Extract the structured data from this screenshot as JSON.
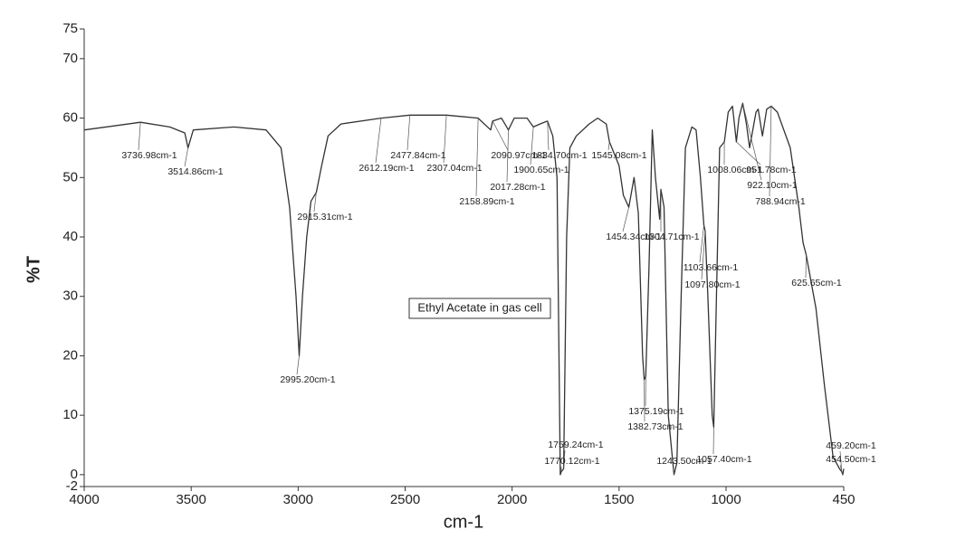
{
  "chart_data": {
    "type": "line",
    "x_label": "cm-1",
    "y_label": "%T",
    "annotation_box": "Ethyl Acetate in gas cell",
    "color": "#333333",
    "xlim": [
      4000,
      450
    ],
    "ylim": [
      -2,
      75
    ],
    "xticks": [
      4000,
      3500,
      3000,
      2500,
      2000,
      1500,
      1000,
      450
    ],
    "yticks": [
      -2,
      0,
      10,
      20,
      30,
      40,
      50,
      60,
      70,
      75
    ],
    "x": [
      4000,
      3736.98,
      3600,
      3530,
      3514.86,
      3490,
      3300,
      3150,
      3080,
      3040,
      3010,
      2995.2,
      2980,
      2960,
      2940,
      2915.31,
      2890,
      2860,
      2800,
      2612.19,
      2477.84,
      2307.04,
      2158.89,
      2100,
      2090.97,
      2050,
      2017.28,
      1990,
      1930,
      1900.65,
      1870,
      1834.7,
      1810,
      1790,
      1775,
      1770.12,
      1759.24,
      1745,
      1730,
      1700,
      1640,
      1600,
      1560,
      1545.08,
      1500,
      1480,
      1454.34,
      1430,
      1410,
      1390,
      1382.73,
      1375.19,
      1360,
      1345,
      1330,
      1310,
      1304.71,
      1290,
      1270,
      1243.5,
      1230,
      1210,
      1190,
      1160,
      1140,
      1120,
      1103.66,
      1097.8,
      1085,
      1065,
      1057.4,
      1045,
      1030,
      1008.06,
      990,
      970,
      951.78,
      940,
      922.1,
      905,
      890,
      860,
      850,
      830,
      810,
      788.94,
      760,
      700,
      660,
      640,
      625.65,
      580,
      540,
      500,
      470,
      459.2,
      454.5,
      450
    ],
    "values": [
      58,
      59.3,
      58.5,
      57.5,
      55,
      58,
      58.5,
      58,
      55,
      45,
      30,
      20,
      30,
      40,
      46,
      47.5,
      52,
      57,
      59,
      60,
      60.5,
      60.5,
      60,
      58,
      59.5,
      60,
      58,
      60,
      60,
      58.5,
      59,
      59.5,
      57,
      50,
      0,
      0.5,
      1,
      40,
      55,
      57,
      59,
      60,
      59,
      56,
      52,
      47,
      45,
      50,
      44,
      20,
      16,
      16.5,
      35,
      58,
      50,
      43,
      48,
      45,
      10,
      0,
      2,
      30,
      55,
      58.5,
      58,
      50,
      42,
      41,
      30,
      10,
      8,
      30,
      55,
      56,
      61,
      62,
      56,
      60,
      62.5,
      59,
      55,
      61,
      61.5,
      57,
      61.5,
      62,
      61,
      55,
      45,
      39,
      37,
      28,
      15,
      3,
      1,
      0.5,
      0,
      1
    ],
    "annotations": [
      {
        "text": "3736.98cm-1",
        "x": 3736.98
      },
      {
        "text": "3514.86cm-1",
        "x": 3514.86
      },
      {
        "text": "2915.31cm-1",
        "x": 2915.31
      },
      {
        "text": "2995.20cm-1",
        "x": 2995.2
      },
      {
        "text": "2612.19cm-1",
        "x": 2612.19
      },
      {
        "text": "2477.84cm-1",
        "x": 2477.84
      },
      {
        "text": "2307.04cm-1",
        "x": 2307.04
      },
      {
        "text": "2158.89cm-1",
        "x": 2158.89
      },
      {
        "text": "2017.28cm-1",
        "x": 2017.28
      },
      {
        "text": "2090.97cm-1",
        "x": 2090.97
      },
      {
        "text": "1834.70cm-1",
        "x": 1834.7
      },
      {
        "text": "1900.65cm-1",
        "x": 1900.65
      },
      {
        "text": "1545.08cm-1",
        "x": 1545.08
      },
      {
        "text": "1454.34cm-1",
        "x": 1454.34
      },
      {
        "text": "1304.71cm-1",
        "x": 1304.71
      },
      {
        "text": "1103.66cm-1",
        "x": 1103.66
      },
      {
        "text": "1097.80cm-1",
        "x": 1097.8
      },
      {
        "text": "1375.19cm-1",
        "x": 1375.19
      },
      {
        "text": "1382.73cm-1",
        "x": 1382.73
      },
      {
        "text": "1759.24cm-1",
        "x": 1759.24
      },
      {
        "text": "1770.12cm-1",
        "x": 1770.12
      },
      {
        "text": "1243.50cm-1",
        "x": 1243.5
      },
      {
        "text": "1057.40cm-1",
        "x": 1057.4
      },
      {
        "text": "1008.06cm-1",
        "x": 1008.06
      },
      {
        "text": "951.78cm-1",
        "x": 951.78
      },
      {
        "text": "922.10cm-1",
        "x": 922.1
      },
      {
        "text": "788.94cm-1",
        "x": 788.94
      },
      {
        "text": "625.65cm-1",
        "x": 625.65
      },
      {
        "text": "459.20cm-1",
        "x": 459.2
      },
      {
        "text": "454.50cm-1",
        "x": 454.5
      }
    ]
  }
}
